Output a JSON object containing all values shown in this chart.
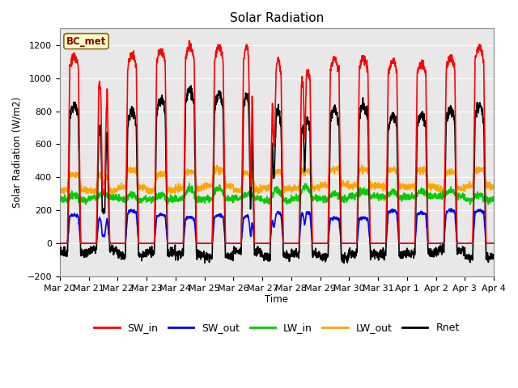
{
  "title": "Solar Radiation",
  "ylabel": "Solar Radiation (W/m2)",
  "xlabel": "Time",
  "station_label": "BC_met",
  "ylim": [
    -200,
    1300
  ],
  "yticks": [
    -200,
    0,
    200,
    400,
    600,
    800,
    1000,
    1200
  ],
  "series": {
    "SW_in": {
      "color": "#ff0000",
      "lw": 1.2
    },
    "SW_out": {
      "color": "#0000ff",
      "lw": 1.2
    },
    "LW_in": {
      "color": "#00cc00",
      "lw": 1.2
    },
    "LW_out": {
      "color": "#ffa500",
      "lw": 1.2
    },
    "Rnet": {
      "color": "#000000",
      "lw": 1.2
    }
  },
  "x_tick_labels": [
    "Mar 20",
    "Mar 21",
    "Mar 22",
    "Mar 23",
    "Mar 24",
    "Mar 25",
    "Mar 26",
    "Mar 27",
    "Mar 28",
    "Mar 29",
    "Mar 30",
    "Mar 31",
    "Apr 1",
    "Apr 2",
    "Apr 3",
    "Apr 4"
  ],
  "n_days": 15,
  "pts_per_day": 144,
  "background_color": "#ffffff",
  "ax_background": "#e8e8e8",
  "grid_color": "#ffffff"
}
